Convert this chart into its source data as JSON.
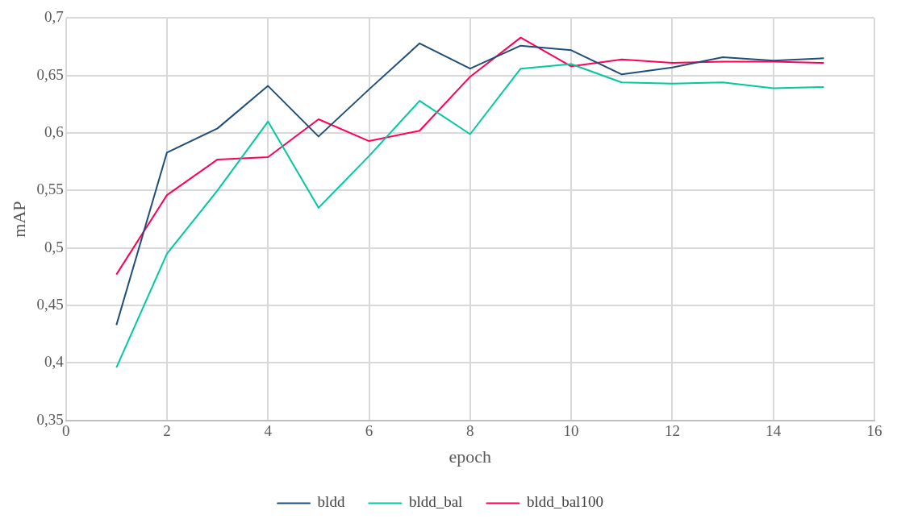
{
  "chart_data": {
    "type": "line",
    "xlabel": "epoch",
    "ylabel": "mAP",
    "x": [
      1,
      2,
      3,
      4,
      5,
      6,
      7,
      8,
      9,
      10,
      11,
      12,
      13,
      14,
      15
    ],
    "series": [
      {
        "name": "bldd",
        "color": "#1f4e79",
        "values": [
          0.433,
          0.583,
          0.604,
          0.641,
          0.597,
          0.638,
          0.678,
          0.656,
          0.676,
          0.672,
          0.651,
          0.657,
          0.666,
          0.663,
          0.665
        ]
      },
      {
        "name": "bldd_bal",
        "color": "#00c8a0",
        "values": [
          0.396,
          0.495,
          0.55,
          0.61,
          0.535,
          0.58,
          0.628,
          0.599,
          0.656,
          0.66,
          0.644,
          0.643,
          0.644,
          0.639,
          0.64
        ]
      },
      {
        "name": "bldd_bal100",
        "color": "#ff0055",
        "values": [
          0.477,
          0.546,
          0.577,
          0.579,
          0.612,
          0.593,
          0.602,
          0.649,
          0.683,
          0.658,
          0.664,
          0.661,
          0.662,
          0.662,
          0.661
        ]
      }
    ],
    "xlim": [
      0,
      16
    ],
    "xticks": [
      0,
      2,
      4,
      6,
      8,
      10,
      12,
      14,
      16
    ],
    "ylim": [
      0.35,
      0.7
    ],
    "yticks": [
      {
        "value": 0.35,
        "label": "0,35"
      },
      {
        "value": 0.4,
        "label": "0,4"
      },
      {
        "value": 0.45,
        "label": "0,45"
      },
      {
        "value": 0.5,
        "label": "0,5"
      },
      {
        "value": 0.55,
        "label": "0,55"
      },
      {
        "value": 0.6,
        "label": "0,6"
      },
      {
        "value": 0.65,
        "label": "0,65"
      },
      {
        "value": 0.7,
        "label": "0,7"
      }
    ],
    "grid": true,
    "legend": "bottom",
    "marker": "none",
    "line_style": "solid"
  }
}
